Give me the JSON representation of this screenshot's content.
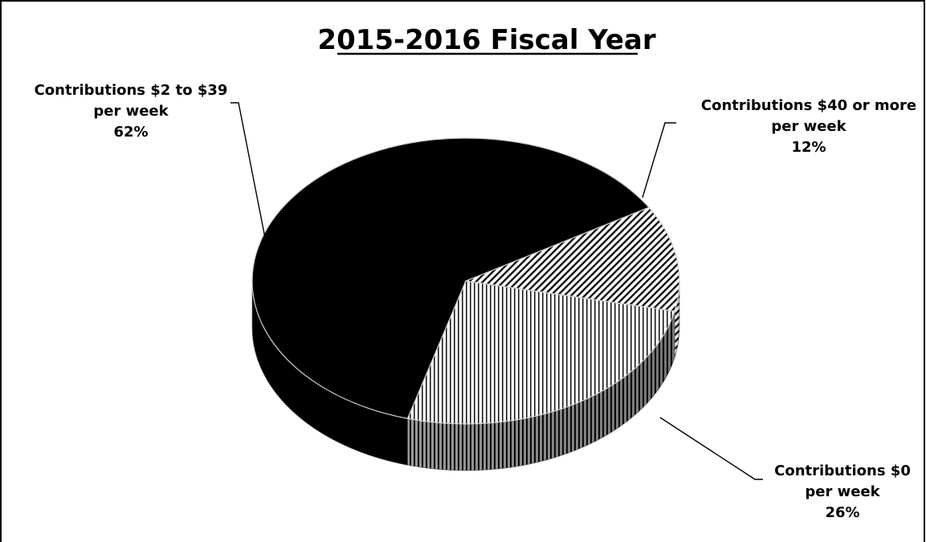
{
  "chart_data": {
    "type": "pie",
    "title": "2015-2016 Fiscal Year",
    "slices": [
      {
        "label_lines": [
          "Contributions $2 to $39",
          "per week"
        ],
        "percent_label": "62%",
        "value": 62,
        "fill": "solid-black"
      },
      {
        "label_lines": [
          "Contributions $40 or more",
          "per week"
        ],
        "percent_label": "12%",
        "value": 12,
        "fill": "diagonal-hatch"
      },
      {
        "label_lines": [
          "Contributions $0",
          "per week"
        ],
        "percent_label": "26%",
        "value": 26,
        "fill": "vertical-stripes"
      }
    ],
    "style": "3d-tilted-pie",
    "legend": "none"
  }
}
